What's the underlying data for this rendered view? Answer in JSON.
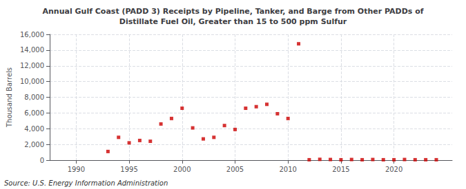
{
  "chart_data": {
    "type": "scatter",
    "title": "Annual Gulf Coast (PADD 3) Receipts by Pipeline, Tanker, and Barge from Other PADDs of\nDistillate Fuel Oil, Greater than 15 to 500 ppm Sulfur",
    "ylabel": "Thousand Barrels",
    "source": "Source: U.S. Energy Information Administration",
    "color": "#cc0000",
    "marker": "square",
    "grid": true,
    "xlim": [
      1987.5,
      2025.5
    ],
    "xticks": [
      1990,
      1995,
      2000,
      2005,
      2010,
      2015,
      2020
    ],
    "ylim": [
      0,
      16000
    ],
    "yticks": [
      0,
      {
        "value": 2000,
        "label": "2,000"
      },
      {
        "value": 4000,
        "label": "4,000"
      },
      {
        "value": 6000,
        "label": "6,000"
      },
      {
        "value": 8000,
        "label": "8,000"
      },
      {
        "value": 10000,
        "label": "10,000"
      },
      {
        "value": 12000,
        "label": "12,000"
      },
      {
        "value": 14000,
        "label": "14,000"
      },
      {
        "value": 16000,
        "label": "16,000"
      }
    ],
    "x": [
      1993,
      1994,
      1995,
      1996,
      1997,
      1998,
      1999,
      2000,
      2001,
      2002,
      2003,
      2004,
      2005,
      2006,
      2007,
      2008,
      2009,
      2010,
      2011,
      2012,
      2013,
      2014,
      2015,
      2016,
      2017,
      2018,
      2019,
      2020,
      2021,
      2022,
      2023,
      2024
    ],
    "values": [
      1100,
      2900,
      2200,
      2500,
      2400,
      4600,
      5300,
      6600,
      4100,
      2700,
      2900,
      4400,
      3900,
      6600,
      6800,
      7100,
      5900,
      5300,
      14800,
      50,
      100,
      80,
      50,
      80,
      50,
      80,
      50,
      50,
      80,
      50,
      50,
      50
    ]
  }
}
